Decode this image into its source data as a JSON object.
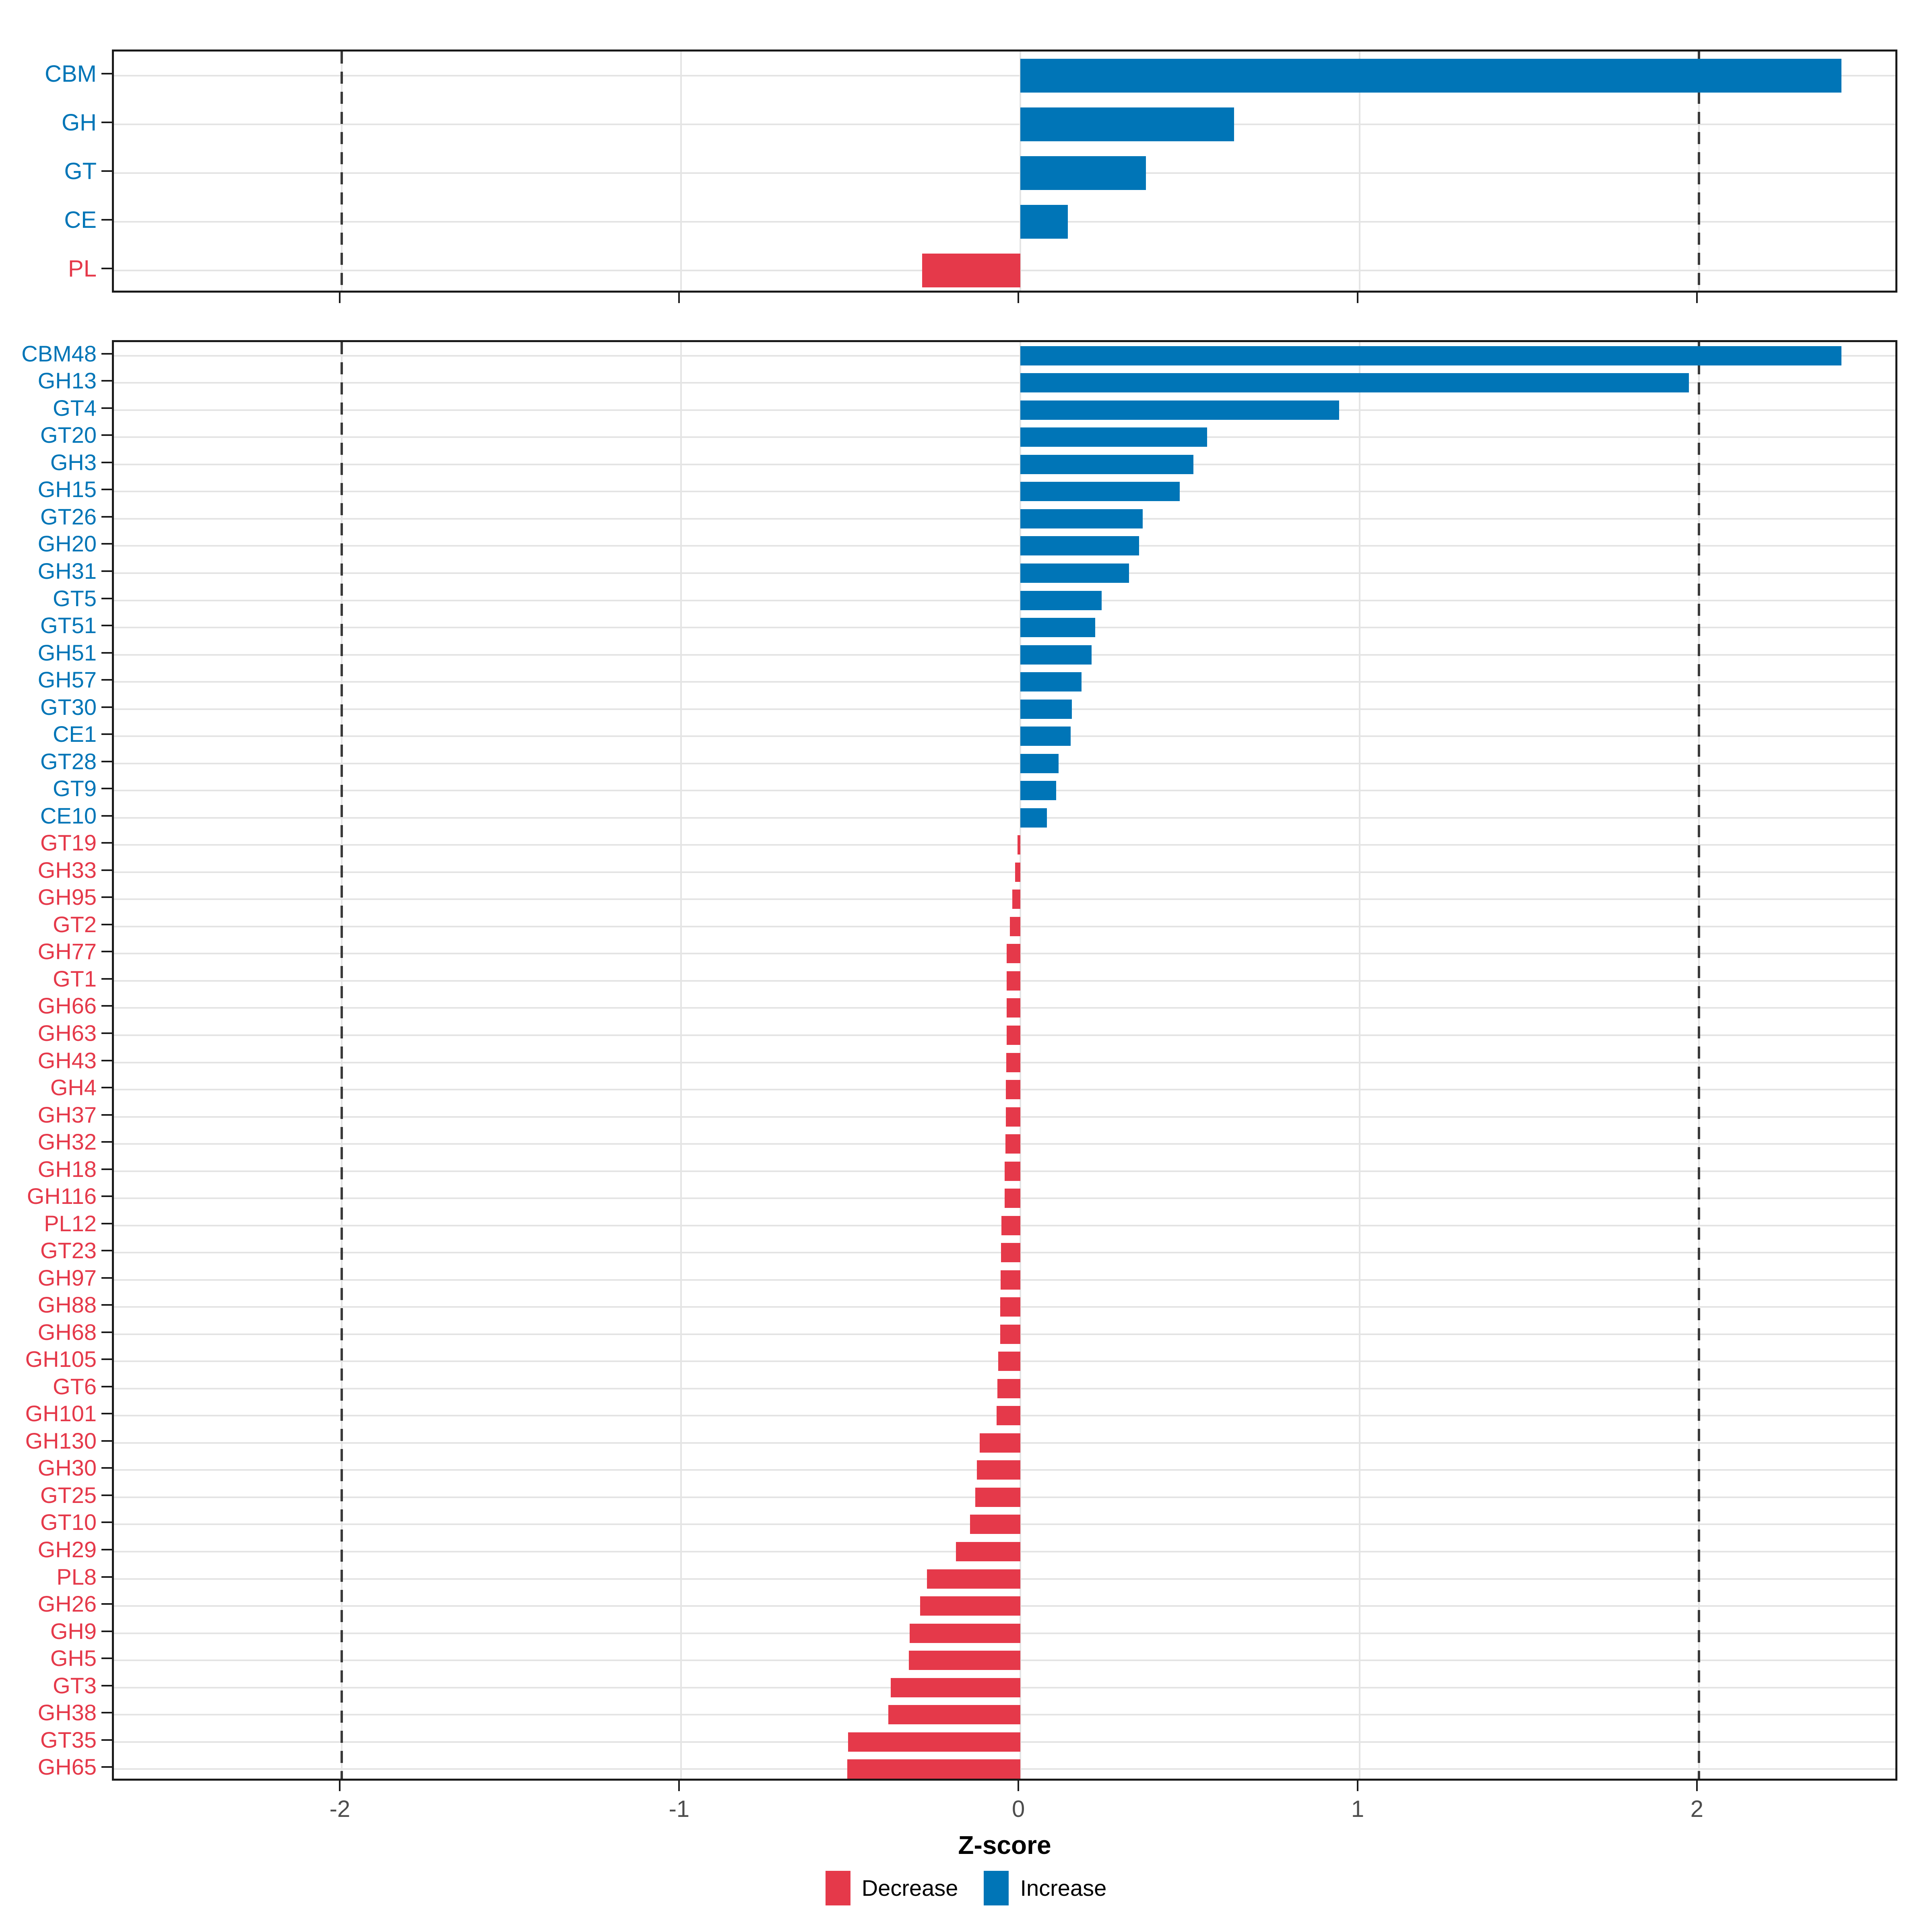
{
  "chart_data": {
    "type": "bar",
    "orientation": "horizontal",
    "xlabel": "Z-score",
    "x_ticks": [
      -2,
      -1,
      0,
      1,
      2
    ],
    "x_domain": [
      -2.672,
      2.591
    ],
    "dashed_vlines": [
      -2,
      2
    ],
    "grid": "on",
    "legend_position": "bottom",
    "colors": {
      "increase": "#0075B7",
      "decrease": "#E5394A",
      "grid": "#E4E4E4",
      "dashed_line": "#3A3A3A",
      "axis_text": "#4D4D4D",
      "panel_border": "#1A1A1A",
      "background": "#FFFFFF"
    },
    "legend": {
      "items": [
        {
          "label": "Decrease",
          "color": "#E5394A"
        },
        {
          "label": "Increase",
          "color": "#0075B7"
        }
      ]
    },
    "panels": [
      {
        "id": "family-summary",
        "categories": [
          "CBM",
          "GH",
          "GT",
          "CE",
          "PL"
        ],
        "values": [
          2.42,
          0.63,
          0.37,
          0.14,
          -0.29
        ]
      },
      {
        "id": "family-detail",
        "categories": [
          "CBM48",
          "GH13",
          "GT4",
          "GT20",
          "GH3",
          "GH15",
          "GT26",
          "GH20",
          "GH31",
          "GT5",
          "GT51",
          "GH51",
          "GH57",
          "GT30",
          "CE1",
          "GT28",
          "GT9",
          "CE10",
          "GT19",
          "GH33",
          "GH95",
          "GT2",
          "GH77",
          "GT1",
          "GH66",
          "GH63",
          "GH43",
          "GH4",
          "GH37",
          "GH32",
          "GH18",
          "GH116",
          "PL12",
          "GT23",
          "GH97",
          "GH88",
          "GH68",
          "GH105",
          "GT6",
          "GH101",
          "GH130",
          "GH30",
          "GT25",
          "GT10",
          "GH29",
          "PL8",
          "GH26",
          "GH9",
          "GH5",
          "GT3",
          "GH38",
          "GT35",
          "GH65"
        ],
        "values": [
          2.42,
          1.97,
          0.94,
          0.55,
          0.51,
          0.47,
          0.36,
          0.35,
          0.32,
          0.24,
          0.22,
          0.21,
          0.18,
          0.152,
          0.148,
          0.113,
          0.106,
          0.078,
          -0.008,
          -0.015,
          -0.024,
          -0.031,
          -0.04,
          -0.04,
          -0.041,
          -0.041,
          -0.042,
          -0.043,
          -0.043,
          -0.044,
          -0.046,
          -0.047,
          -0.056,
          -0.057,
          -0.058,
          -0.059,
          -0.06,
          -0.065,
          -0.068,
          -0.07,
          -0.12,
          -0.128,
          -0.133,
          -0.148,
          -0.19,
          -0.276,
          -0.296,
          -0.327,
          -0.329,
          -0.382,
          -0.389,
          -0.508,
          -0.51
        ]
      }
    ]
  }
}
